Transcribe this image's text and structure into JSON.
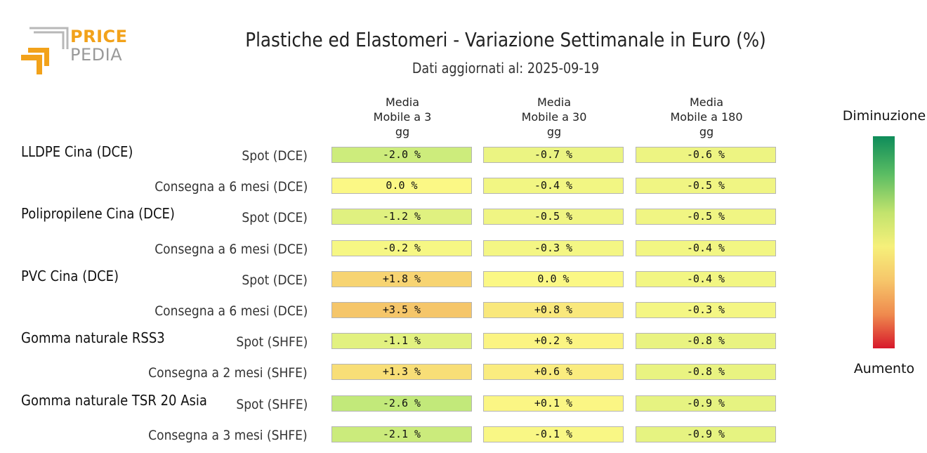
{
  "brand": {
    "line1": "PRICE",
    "line2": "PEDIA",
    "colors": {
      "orange": "#f2a21a",
      "grey": "#9a9a9a"
    }
  },
  "title": "Plastiche ed Elastomeri - Variazione Settimanale in Euro (%)",
  "subtitle": "Dati aggiornati al: 2025-09-19",
  "legend": {
    "top": "Diminuzione",
    "bottom": "Aumento",
    "gradient": [
      "#0e8c5a",
      "#5bbd63",
      "#c2e36d",
      "#f6f07a",
      "#f6c66a",
      "#ef8a4e",
      "#d7192b"
    ]
  },
  "chart_data": {
    "type": "table",
    "columns": [
      [
        "Media",
        "Mobile a 3",
        "gg"
      ],
      [
        "Media",
        "Mobile a 30",
        "gg"
      ],
      [
        "Media",
        "Mobile a 180",
        "gg"
      ]
    ],
    "groups": [
      {
        "name": "LLDPE Cina (DCE)",
        "rows": [
          {
            "label": "Spot (DCE)",
            "values": [
              -2.0,
              -0.7,
              -0.6
            ],
            "text": [
              "-2.0 %",
              "-0.7 %",
              "-0.6 %"
            ]
          },
          {
            "label": "Consegna a 6 mesi (DCE)",
            "values": [
              0.0,
              -0.4,
              -0.5
            ],
            "text": [
              "0.0 %",
              "-0.4 %",
              "-0.5 %"
            ]
          }
        ]
      },
      {
        "name": "Polipropilene Cina (DCE)",
        "rows": [
          {
            "label": "Spot (DCE)",
            "values": [
              -1.2,
              -0.5,
              -0.5
            ],
            "text": [
              "-1.2 %",
              "-0.5 %",
              "-0.5 %"
            ]
          },
          {
            "label": "Consegna a 6 mesi (DCE)",
            "values": [
              -0.2,
              -0.3,
              -0.4
            ],
            "text": [
              "-0.2 %",
              "-0.3 %",
              "-0.4 %"
            ]
          }
        ]
      },
      {
        "name": "PVC Cina (DCE)",
        "rows": [
          {
            "label": "Spot (DCE)",
            "values": [
              1.8,
              0.0,
              -0.4
            ],
            "text": [
              "+1.8 %",
              "0.0 %",
              "-0.4 %"
            ]
          },
          {
            "label": "Consegna a 6 mesi (DCE)",
            "values": [
              3.5,
              0.8,
              -0.3
            ],
            "text": [
              "+3.5 %",
              "+0.8 %",
              "-0.3 %"
            ]
          }
        ]
      },
      {
        "name": "Gomma naturale RSS3",
        "rows": [
          {
            "label": "Spot (SHFE)",
            "values": [
              -1.1,
              0.2,
              -0.8
            ],
            "text": [
              "-1.1 %",
              "+0.2 %",
              "-0.8 %"
            ]
          },
          {
            "label": "Consegna a 2 mesi (SHFE)",
            "values": [
              1.3,
              0.6,
              -0.8
            ],
            "text": [
              "+1.3 %",
              "+0.6 %",
              "-0.8 %"
            ]
          }
        ]
      },
      {
        "name": "Gomma naturale TSR 20 Asia",
        "rows": [
          {
            "label": "Spot (SHFE)",
            "values": [
              -2.6,
              0.1,
              -0.9
            ],
            "text": [
              "-2.6 %",
              "+0.1 %",
              "-0.9 %"
            ]
          },
          {
            "label": "Consegna a 3 mesi (SHFE)",
            "values": [
              -2.1,
              -0.1,
              -0.9
            ],
            "text": [
              "-2.1 %",
              "-0.1 %",
              "-0.9 %"
            ]
          }
        ]
      }
    ]
  }
}
